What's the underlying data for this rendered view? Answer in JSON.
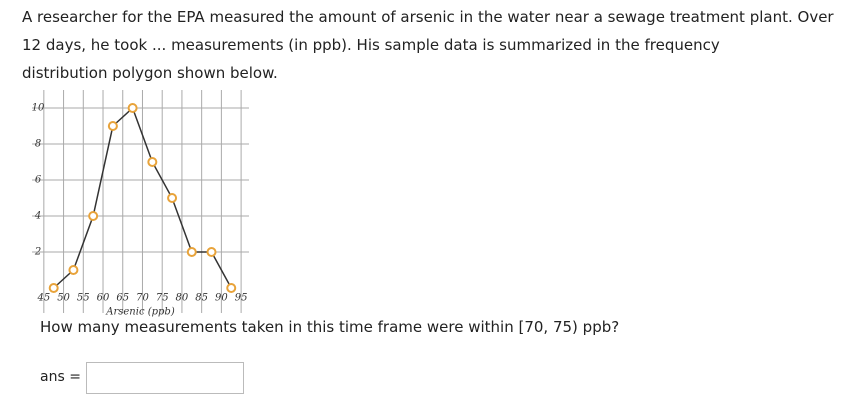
{
  "problem": {
    "lines": [
      "A researcher for the EPA measured the amount of arsenic in the water near a sewage treatment plant. Over",
      "12 days, he took ... measurements (in ppb). His sample data is summarized in the frequency",
      "distribution polygon shown below."
    ]
  },
  "chart_data": {
    "type": "line",
    "x_label": "Arsenic (ppb)",
    "x": [
      47.5,
      52.5,
      57.5,
      62.5,
      67.5,
      72.5,
      77.5,
      82.5,
      87.5,
      92.5
    ],
    "values": [
      0,
      1,
      4,
      9,
      10,
      7,
      5,
      2,
      2,
      0
    ],
    "color": "#333333",
    "marker_color": "#e8a33a",
    "xlim": [
      42,
      97
    ],
    "xticks": [
      45,
      50,
      55,
      60,
      65,
      70,
      75,
      80,
      85,
      90,
      95
    ],
    "ylim": [
      0,
      11
    ],
    "yticks": [
      2,
      4,
      6,
      8,
      10
    ],
    "grid": true
  },
  "question": "How many measurements taken in this time frame were within [70, 75) ppb?",
  "answer_label": "ans ="
}
